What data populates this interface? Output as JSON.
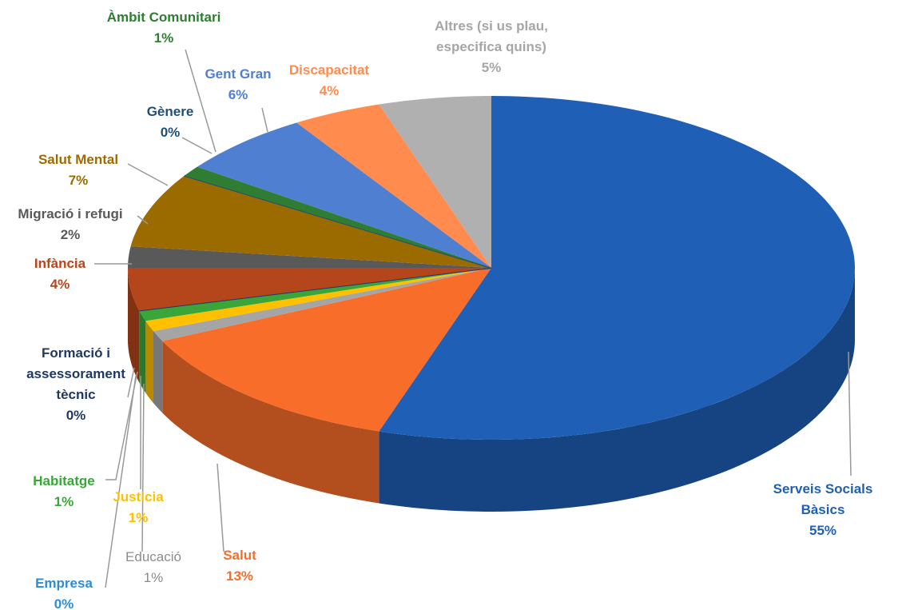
{
  "chart_data": {
    "type": "pie3d",
    "categories": [
      "Serveis Socials Bàsics",
      "Salut",
      "Educació",
      "Justicia",
      "Habitatge",
      "Empresa",
      "Formació i assessorament tècnic",
      "Infància",
      "Migració i refugi",
      "Salut Mental",
      "Gènere",
      "Àmbit Comunitari",
      "Gent Gran",
      "Discapacitat",
      "Altres (si us plau, especifica quins)"
    ],
    "values": [
      55,
      13,
      1,
      1,
      1,
      0,
      0,
      4,
      2,
      7,
      0,
      1,
      6,
      4,
      5
    ],
    "value_labels": [
      "55%",
      "13%",
      "1%",
      "1%",
      "1%",
      "0%",
      "0%",
      "4%",
      "2%",
      "7%",
      "0%",
      "1%",
      "6%",
      "4%",
      "5%"
    ],
    "colors": [
      "#1f5fb5",
      "#f96d2a",
      "#a5a5a5",
      "#ffc000",
      "#3aa63a",
      "#2e8bd6",
      "#1f3864",
      "#b5451b",
      "#595959",
      "#9c6b00",
      "#1f4e79",
      "#2e7d32",
      "#4f7fd0",
      "#ff8c4e",
      "#b0b0b0"
    ]
  }
}
